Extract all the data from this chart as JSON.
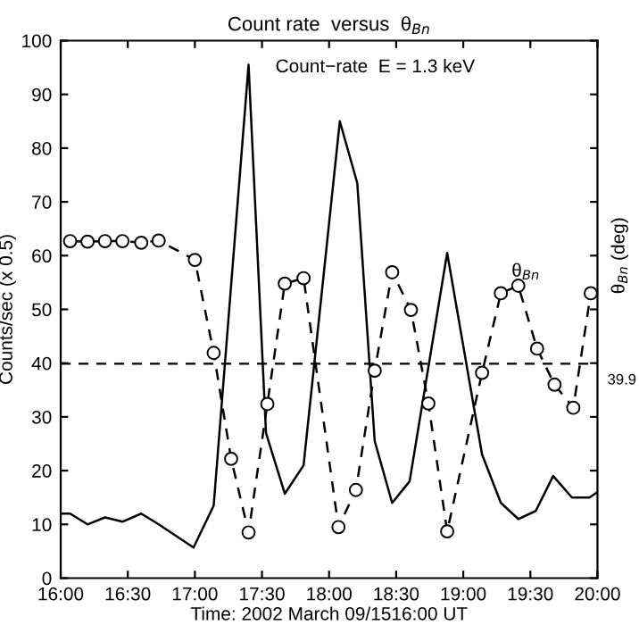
{
  "chart_data": {
    "type": "line",
    "title": "Count rate  versus  θ$_{Bn}$",
    "xlabel": "Time: 2002 March 09/1516:00 UT",
    "ylabel": "Counts/sec (x 0.5)",
    "y2label": "θ$_{Bn}$ (deg)",
    "xlim": [
      16,
      20
    ],
    "xticks": [
      {
        "value": 16,
        "label": "16:00"
      },
      {
        "value": 16.5,
        "label": "16:30"
      },
      {
        "value": 17,
        "label": "17:00"
      },
      {
        "value": 17.5,
        "label": "17:30"
      },
      {
        "value": 18,
        "label": "18:00"
      },
      {
        "value": 18.5,
        "label": "18:30"
      },
      {
        "value": 19,
        "label": "19:00"
      },
      {
        "value": 19.5,
        "label": "19:30"
      },
      {
        "value": 20,
        "label": "20:00"
      }
    ],
    "ylim": [
      0,
      100
    ],
    "yticks": [
      0,
      10,
      20,
      30,
      40,
      50,
      60,
      70,
      80,
      90,
      100
    ],
    "grid": false,
    "series": [
      {
        "color": "#000000",
        "marker": "none",
        "line_style": "solid",
        "x": [
          16.0,
          16.07,
          16.2,
          16.33,
          16.46,
          16.6,
          16.73,
          16.99,
          17.14,
          17.4,
          17.53,
          17.67,
          17.81,
          18.08,
          18.21,
          18.34,
          18.47,
          18.6,
          18.88,
          19.14,
          19.28,
          19.41,
          19.54,
          19.67,
          19.81,
          19.94,
          20.0
        ],
        "values": [
          12,
          12,
          10,
          11.3,
          10.5,
          12,
          10,
          5.7,
          13.5,
          95.5,
          27,
          15.7,
          21,
          85,
          73.5,
          25.5,
          14,
          18,
          60.5,
          23,
          14,
          11,
          12.5,
          19,
          15,
          15,
          16
        ]
      },
      {
        "color": "#000000",
        "marker": "circle",
        "line_style": "dashed",
        "x": [
          16.07,
          16.2,
          16.33,
          16.46,
          16.6,
          16.73,
          17.0,
          17.14,
          17.27,
          17.4,
          17.54,
          17.67,
          17.81,
          18.07,
          18.2,
          18.34,
          18.47,
          18.61,
          18.74,
          18.88,
          19.14,
          19.28,
          19.41,
          19.55,
          19.68,
          19.82,
          19.95
        ],
        "values": [
          62.7,
          62.6,
          62.7,
          62.7,
          62.4,
          62.8,
          59.2,
          41.9,
          22.2,
          8.5,
          32.4,
          54.8,
          55.8,
          9.5,
          16.4,
          38.6,
          56.9,
          49.9,
          32.5,
          8.7,
          38.2,
          53,
          54.4,
          42.7,
          36,
          31.7,
          53
        ]
      }
    ],
    "ref_lines": [
      {
        "axis": "y",
        "value": 39.9,
        "label": "39.9",
        "color": "#000000",
        "line_style": "dashed"
      }
    ],
    "annotations": [
      "Count−rate  E = 1.3 keV",
      "θ$_{Bn}$"
    ]
  }
}
